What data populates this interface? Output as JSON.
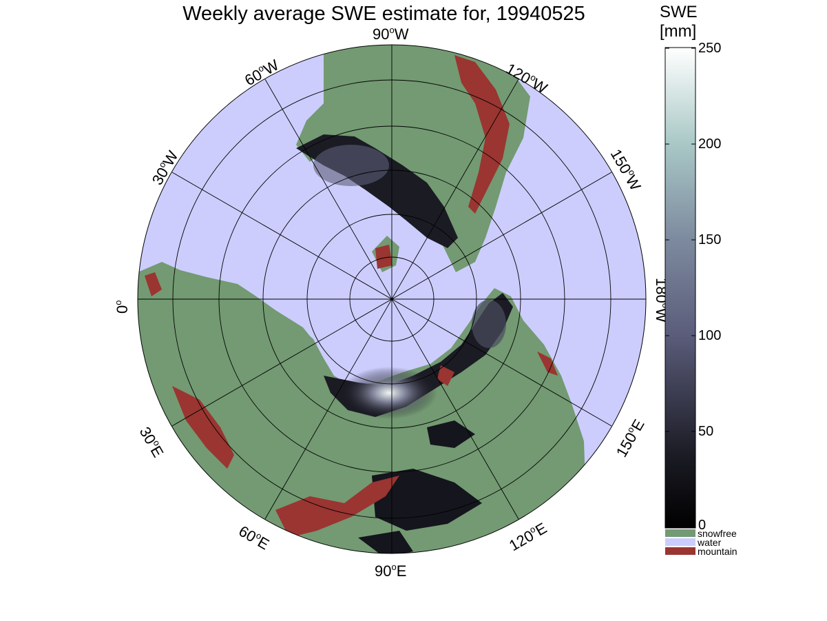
{
  "title": "Weekly average SWE estimate for, 19940525",
  "colorbar": {
    "title_line1": "SWE",
    "title_line2": "[mm]",
    "ticks": [
      "250",
      "200",
      "150",
      "100",
      "50",
      "0"
    ],
    "range": [
      0,
      250
    ],
    "categories": [
      {
        "label": "snowfree",
        "color": "#739a72"
      },
      {
        "label": "water",
        "color": "#cccdfd"
      },
      {
        "label": "mountain",
        "color": "#9a3531"
      }
    ]
  },
  "map": {
    "projection": "north polar stereographic",
    "longitude_labels": [
      {
        "text": "90",
        "dir": "W"
      },
      {
        "text": "60",
        "dir": "W"
      },
      {
        "text": "120",
        "dir": "W"
      },
      {
        "text": "30",
        "dir": "W"
      },
      {
        "text": "150",
        "dir": "W"
      },
      {
        "text": "0",
        "dir": ""
      },
      {
        "text": "180",
        "dir": "W"
      },
      {
        "text": "30",
        "dir": "E"
      },
      {
        "text": "150",
        "dir": "E"
      },
      {
        "text": "60",
        "dir": "E"
      },
      {
        "text": "120",
        "dir": "E"
      },
      {
        "text": "90",
        "dir": "E"
      }
    ],
    "colors": {
      "water": "#cccdfd",
      "snowfree": "#739a72",
      "mountain": "#9a3531",
      "snow_low": "#0b0b10",
      "snow_high": "#f4fbfa"
    }
  }
}
